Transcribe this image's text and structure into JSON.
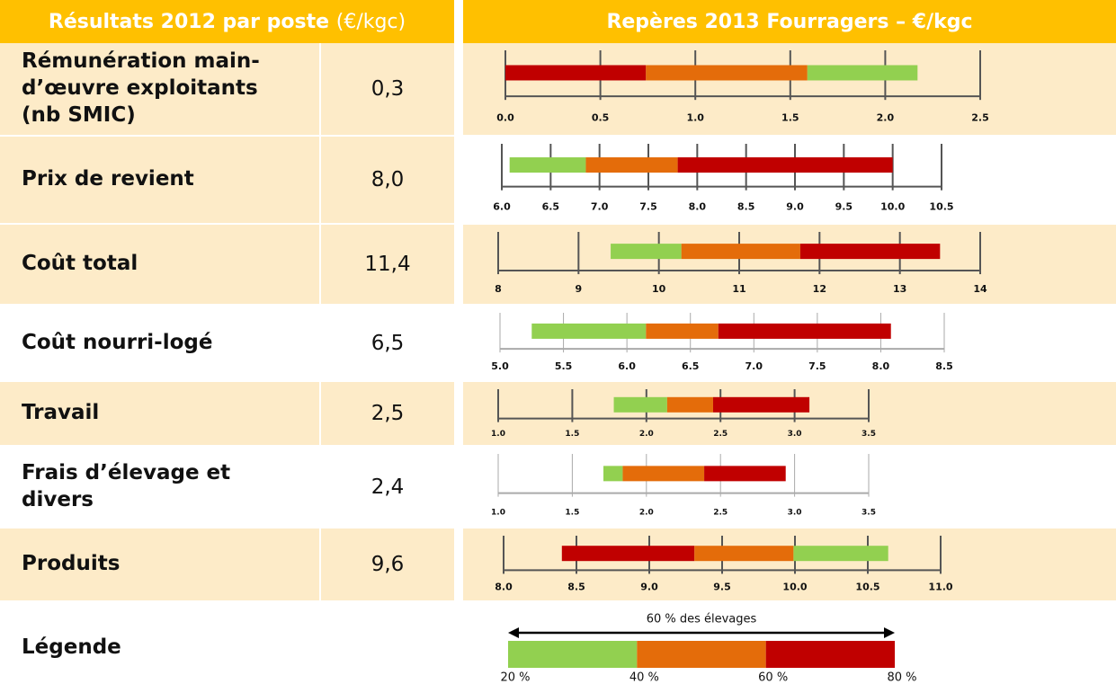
{
  "header": {
    "left_title": "Résultats 2012 par poste",
    "left_unit": "(€/kgc)",
    "right_title": "Repères 2013 Fourragers – €/kgc"
  },
  "rows": [
    {
      "label": "Rémunération main-d’œuvre exploitants (nb SMIC)",
      "value": "0,3",
      "chart": {
        "type": "bar",
        "xlim": [
          0,
          2.5
        ],
        "xticks": [
          {
            "value": 0,
            "label": "0.0"
          },
          {
            "value": 0.5,
            "label": "0.5"
          },
          {
            "value": 1,
            "label": "1.0"
          },
          {
            "value": 1.5,
            "label": "1.5"
          },
          {
            "value": 2,
            "label": "2.0"
          },
          {
            "value": 2.5,
            "label": "2.5"
          }
        ],
        "segments": [
          {
            "from": 0,
            "to": 0.74,
            "color": "#c00000"
          },
          {
            "from": 0.74,
            "to": 1.59,
            "color": "#e46c0a"
          },
          {
            "from": 1.59,
            "to": 2.17,
            "color": "#92d050"
          }
        ]
      }
    },
    {
      "label": "Prix de revient",
      "value": "8,0",
      "chart": {
        "type": "bar",
        "xlim": [
          6,
          10.5
        ],
        "xticks": [
          {
            "value": 6,
            "label": "6.0"
          },
          6.5,
          {
            "value": 7,
            "label": "7.0"
          },
          7.5,
          {
            "value": 8,
            "label": "8.0"
          },
          8.5,
          {
            "value": 9,
            "label": "9.0"
          },
          9.5,
          {
            "value": 10,
            "label": "10.0"
          },
          10.5
        ],
        "segments": [
          {
            "from": 6.08,
            "to": 6.86,
            "color": "#92d050"
          },
          {
            "from": 6.86,
            "to": 7.8,
            "color": "#e46c0a"
          },
          {
            "from": 7.8,
            "to": 10,
            "color": "#c00000"
          }
        ]
      }
    },
    {
      "label": "Coût total",
      "value": "11,4",
      "chart": {
        "type": "bar",
        "xlim": [
          8,
          14
        ],
        "xticks": [
          8,
          9,
          10,
          11,
          12,
          13,
          14
        ],
        "segments": [
          {
            "from": 9.4,
            "to": 10.28,
            "color": "#92d050"
          },
          {
            "from": 10.28,
            "to": 11.76,
            "color": "#e46c0a"
          },
          {
            "from": 11.76,
            "to": 13.5,
            "color": "#c00000"
          }
        ]
      }
    },
    {
      "label": "Coût nourri-logé",
      "value": "6,5",
      "chart": {
        "type": "bar",
        "xlim": [
          5,
          8.5
        ],
        "xticks": [
          {
            "value": 5,
            "label": "5.0"
          },
          5.5,
          {
            "value": 6,
            "label": "6.0"
          },
          6.5,
          {
            "value": 7,
            "label": "7.0"
          },
          7.5,
          {
            "value": 8,
            "label": "8.0"
          },
          8.5
        ],
        "segments": [
          {
            "from": 5.25,
            "to": 6.15,
            "color": "#92d050"
          },
          {
            "from": 6.15,
            "to": 6.72,
            "color": "#e46c0a"
          },
          {
            "from": 6.72,
            "to": 8.08,
            "color": "#c00000"
          }
        ]
      }
    },
    {
      "label": "Travail",
      "value": "2,5",
      "chart": {
        "type": "bar",
        "xlim": [
          1,
          3.5
        ],
        "xticks": [
          {
            "value": 1,
            "label": "1.0"
          },
          1.5,
          {
            "value": 2,
            "label": "2.0"
          },
          2.5,
          {
            "value": 3,
            "label": "3.0"
          },
          3.5
        ],
        "segments": [
          {
            "from": 1.78,
            "to": 2.14,
            "color": "#92d050"
          },
          {
            "from": 2.14,
            "to": 2.45,
            "color": "#e46c0a"
          },
          {
            "from": 2.45,
            "to": 3.1,
            "color": "#c00000"
          }
        ]
      }
    },
    {
      "label": "Frais d’élevage et divers",
      "value": "2,4",
      "chart": {
        "type": "bar",
        "xlim": [
          1,
          3.5
        ],
        "xticks": [
          {
            "value": 1,
            "label": "1.0"
          },
          1.5,
          {
            "value": 2,
            "label": "2.0"
          },
          2.5,
          {
            "value": 3,
            "label": "3.0"
          },
          3.5
        ],
        "segments": [
          {
            "from": 1.71,
            "to": 1.84,
            "color": "#92d050"
          },
          {
            "from": 1.84,
            "to": 2.39,
            "color": "#e46c0a"
          },
          {
            "from": 2.39,
            "to": 2.94,
            "color": "#c00000"
          }
        ]
      }
    },
    {
      "label": "Produits",
      "value": "9,6",
      "chart": {
        "type": "bar",
        "xlim": [
          8,
          11
        ],
        "xticks": [
          {
            "value": 8,
            "label": "8.0"
          },
          8.5,
          {
            "value": 9,
            "label": "9.0"
          },
          9.5,
          {
            "value": 10,
            "label": "10.0"
          },
          10.5,
          {
            "value": 11,
            "label": "11.0"
          }
        ],
        "segments": [
          {
            "from": 8.4,
            "to": 9.31,
            "color": "#c00000"
          },
          {
            "from": 9.31,
            "to": 9.99,
            "color": "#e46c0a"
          },
          {
            "from": 9.99,
            "to": 10.64,
            "color": "#92d050"
          }
        ]
      }
    }
  ],
  "legend": {
    "label": "Légende",
    "annotation": "60 % des élevages",
    "xlim": [
      20,
      80
    ],
    "xticks": [
      {
        "value": 20,
        "label": "20 %"
      },
      {
        "value": 40,
        "label": "40 %"
      },
      {
        "value": 60,
        "label": "60 %"
      },
      {
        "value": 80,
        "label": "80 %"
      }
    ],
    "segments": [
      {
        "from": 20,
        "to": 40,
        "color": "#92d050"
      },
      {
        "from": 40,
        "to": 60,
        "color": "#e46c0a"
      },
      {
        "from": 60,
        "to": 80,
        "color": "#c00000"
      }
    ]
  }
}
